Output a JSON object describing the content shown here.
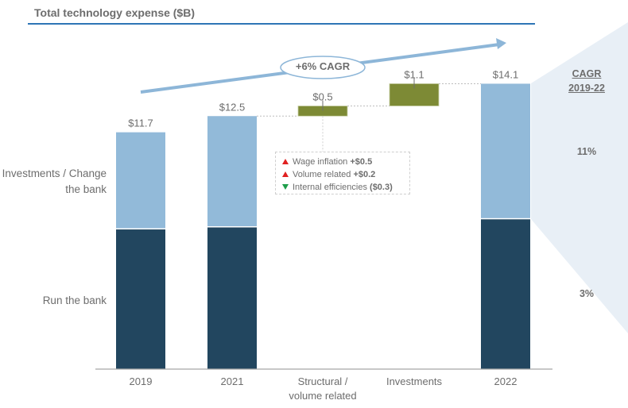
{
  "title": "Total technology expense ($B)",
  "colors": {
    "run": "#22465f",
    "change": "#92bad9",
    "increment": "#7d8a35",
    "arrow": "#8db6d8",
    "title_rule": "#2e75b6",
    "cagr_panel": "#e8eff6",
    "up": "#e02020",
    "down": "#1e9e4a"
  },
  "side_labels": {
    "change": "Investments / Change the bank",
    "run": "Run the bank"
  },
  "cagr_arrow_label": "+6% CAGR",
  "cagr_panel": {
    "heading_line1": "CAGR",
    "heading_line2": "2019-22",
    "change_value": "11%",
    "run_value": "3%"
  },
  "legend": [
    {
      "direction": "up",
      "label": "Wage inflation",
      "value": "+$0.5"
    },
    {
      "direction": "up",
      "label": "Volume related",
      "value": "+$0.2"
    },
    {
      "direction": "down",
      "label": "Internal efficiencies",
      "value": "($0.3)"
    }
  ],
  "chart_data": {
    "type": "bar",
    "subtype": "waterfall-stacked",
    "title": "Total technology expense ($B)",
    "xlabel": "",
    "ylabel": "",
    "ylim": [
      0,
      15
    ],
    "grid": false,
    "categories": [
      "2019",
      "2021",
      "Structural / volume related",
      "Investments",
      "2022"
    ],
    "category_lines": [
      [
        "2019"
      ],
      [
        "2021"
      ],
      [
        "Structural /",
        "volume related"
      ],
      [
        "Investments"
      ],
      [
        "2022"
      ]
    ],
    "series": [
      {
        "name": "Run the bank",
        "values": [
          6.9,
          7.0,
          null,
          null,
          7.4
        ]
      },
      {
        "name": "Investments / Change the bank",
        "values": [
          4.8,
          5.5,
          null,
          null,
          6.7
        ]
      },
      {
        "name": "Increment",
        "values": [
          null,
          null,
          0.5,
          1.1,
          null
        ],
        "base": [
          null,
          null,
          12.5,
          13.0,
          null
        ]
      }
    ],
    "totals": [
      11.7,
      12.5,
      null,
      null,
      14.1
    ],
    "data_labels": [
      "$11.7",
      "$12.5",
      "$0.5",
      "$1.1",
      "$14.1"
    ],
    "annotations": [
      "+6% CAGR",
      "CAGR 2019-22: Change the bank 11%, Run the bank 3%"
    ]
  }
}
